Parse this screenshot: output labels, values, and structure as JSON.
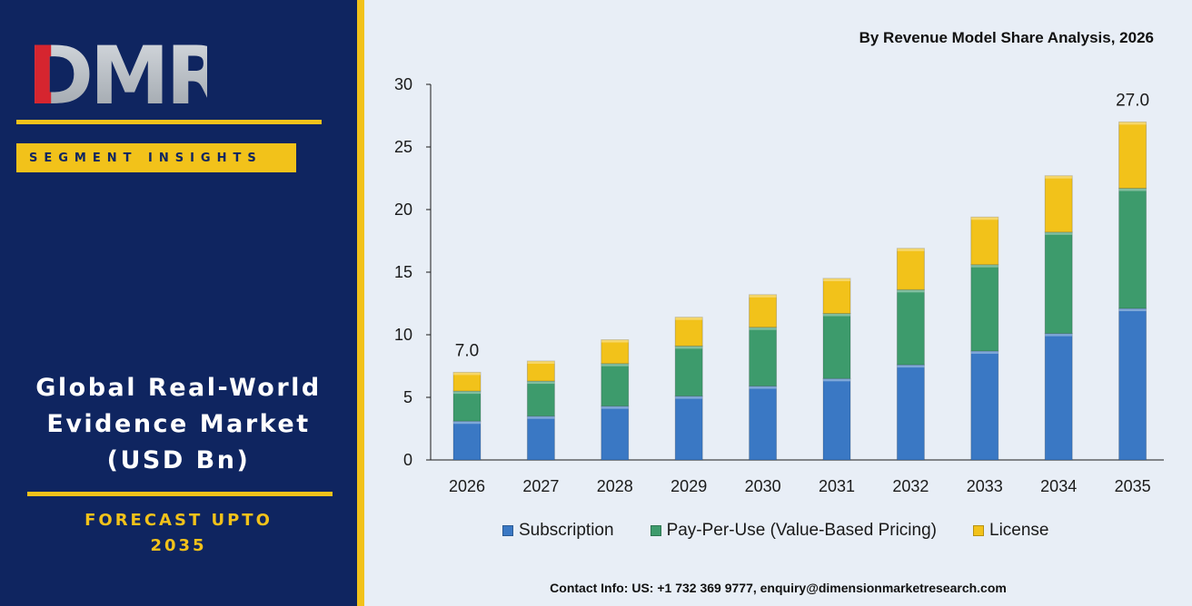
{
  "brand": {
    "logo_text": "DMR"
  },
  "badge": {
    "label": "SEGMENT INSIGHTS"
  },
  "market": {
    "title_lines": [
      "Global Real-World",
      "Evidence Market",
      "(USD Bn)"
    ],
    "forecast_lines": [
      "FORECAST UPTO",
      "2035"
    ]
  },
  "chart_title": "By Revenue Model Share Analysis, 2026",
  "contact": "Contact Info: US: +1 732 369 9777, enquiry@dimensionmarketresearch.com",
  "colors": {
    "panel": "#0f2560",
    "accent": "#f2c21a",
    "subscription": "#3a78c4",
    "pay_per_use": "#3d9b6c",
    "license": "#f2c21a"
  },
  "chart_data": {
    "type": "bar",
    "stacked": true,
    "categories": [
      "2026",
      "2027",
      "2028",
      "2029",
      "2030",
      "2031",
      "2032",
      "2033",
      "2034",
      "2035"
    ],
    "series": [
      {
        "name": "Subscription",
        "values": [
          3.1,
          3.5,
          4.3,
          5.1,
          5.9,
          6.5,
          7.6,
          8.7,
          10.1,
          12.1
        ]
      },
      {
        "name": "Pay-Per-Use (Value-Based Pricing)",
        "values": [
          2.4,
          2.8,
          3.4,
          4.0,
          4.7,
          5.2,
          6.0,
          6.9,
          8.1,
          9.6
        ]
      },
      {
        "name": "License",
        "values": [
          1.5,
          1.6,
          1.9,
          2.3,
          2.6,
          2.8,
          3.3,
          3.8,
          4.5,
          5.3
        ]
      }
    ],
    "data_labels": [
      {
        "category": "2026",
        "text": "7.0"
      },
      {
        "category": "2035",
        "text": "27.0"
      }
    ],
    "yticks": [
      0,
      5,
      10,
      15,
      20,
      25,
      30
    ],
    "ylim": [
      0,
      30
    ],
    "xlabel": "",
    "ylabel": "",
    "legend_position": "bottom",
    "grid": false
  }
}
